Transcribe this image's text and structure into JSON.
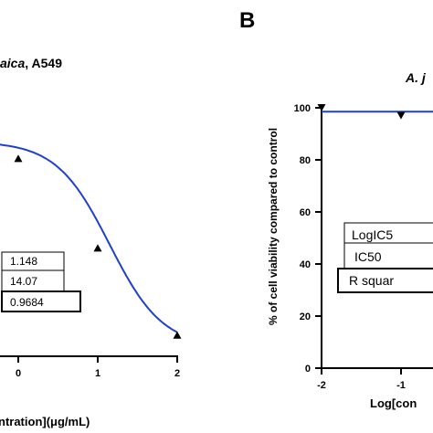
{
  "chart_data": [
    {
      "type": "line",
      "panel_label": "",
      "title_fragment_italic": "aica",
      "title_fragment_rest": ", A549",
      "xlabel": "ntration](μg/mL)",
      "ylabel": "",
      "x_ticks": [
        "0",
        "1",
        "2"
      ],
      "series": [
        {
          "marker": "triangle",
          "points": [
            {
              "x": 0.0,
              "y": 78
            },
            {
              "x": 1.0,
              "y": 41
            },
            {
              "x": 2.0,
              "y": 5
            }
          ]
        }
      ],
      "curve": {
        "model": "inhibition-log-dose",
        "logIC50": 1.148,
        "hillslope": -1.3,
        "top": 85,
        "bottom": 0,
        "color": "#1f3fd0"
      },
      "table": [
        {
          "label": "",
          "value": "1.148"
        },
        {
          "label": "",
          "value": "14.07"
        },
        {
          "label": "",
          "value": "0.9684"
        }
      ]
    },
    {
      "type": "line",
      "panel_label": "B",
      "title_fragment_italic": "A. j",
      "title_fragment_rest": "",
      "xlabel": "Log[con",
      "ylabel": "% of cell viability compared to control",
      "x_ticks": [
        "-2",
        "-1"
      ],
      "y_ticks": [
        "0",
        "20",
        "40",
        "60",
        "80",
        "100"
      ],
      "ylim": [
        0,
        100
      ],
      "series": [
        {
          "marker": "triangle-down",
          "points": [
            {
              "x": -2.0,
              "y": 100
            },
            {
              "x": -1.0,
              "y": 97
            }
          ]
        }
      ],
      "curve": {
        "model": "flat",
        "y": 98.5,
        "color": "#1f3fd0"
      },
      "table": [
        {
          "label": "LogIC5",
          "value": ""
        },
        {
          "label": "IC50",
          "value": ""
        },
        {
          "label": "R squar",
          "value": ""
        }
      ]
    }
  ]
}
